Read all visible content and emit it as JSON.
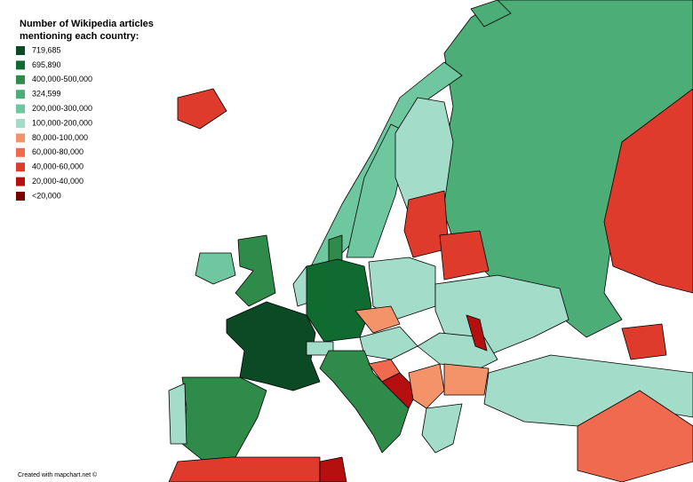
{
  "title": [
    "Number of Wikipedia articles",
    "mentioning each country:"
  ],
  "legend": [
    {
      "label": "719,685",
      "color": "#0b4a24"
    },
    {
      "label": "695,890",
      "color": "#0f6b30"
    },
    {
      "label": "400,000-500,000",
      "color": "#2e8b4a"
    },
    {
      "label": "324,599",
      "color": "#4cae76"
    },
    {
      "label": "200,000-300,000",
      "color": "#6fc7a0"
    },
    {
      "label": "100,000-200,000",
      "color": "#a3dcc8"
    },
    {
      "label": "80,000-100,000",
      "color": "#f4936a"
    },
    {
      "label": "60,000-80,000",
      "color": "#ef6a4f"
    },
    {
      "label": "40,000-60,000",
      "color": "#de3b2d"
    },
    {
      "label": "20,000-40,000",
      "color": "#b5100f"
    },
    {
      "label": "<20,000",
      "color": "#7a0000"
    }
  ],
  "credit": "Created with mapchart.net ©"
}
